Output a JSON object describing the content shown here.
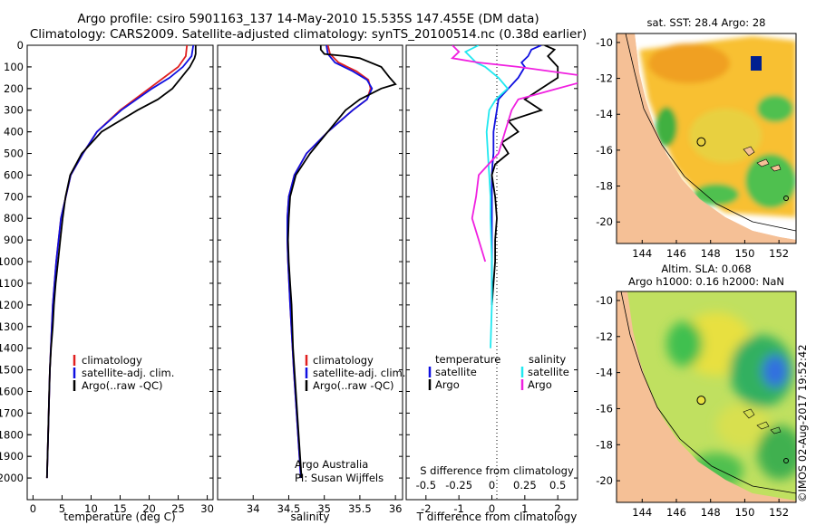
{
  "header": {
    "title_line1": "Argo profile: csiro 5901163_137 14-May-2010 15.535S 147.455E (DM data)",
    "title_line2": "Climatology: CARS2009. Satellite-adjusted climatology: synTS_20100514.nc (0.38d earlier)"
  },
  "credit": "©IMOS 02-Aug-2017 19:52:42",
  "colors": {
    "climatology": "#e02020",
    "satellite": "#1010e0",
    "argo": "#000000",
    "sat_salinity": "#20e8f0",
    "argo_salinity": "#f020e0"
  },
  "chart_data": [
    {
      "id": "temperature",
      "type": "line",
      "xlabel": "temperature (deg C)",
      "ylabel": "",
      "xlim": [
        -1,
        31
      ],
      "ylim": [
        2100,
        0
      ],
      "xticks": [
        "0",
        "5",
        "10",
        "15",
        "20",
        "25",
        "30"
      ],
      "yticks": [
        "0",
        "100",
        "200",
        "300",
        "400",
        "500",
        "600",
        "700",
        "800",
        "900",
        "1000",
        "1100",
        "1200",
        "1300",
        "1400",
        "1500",
        "1600",
        "1700",
        "1800",
        "1900",
        "2000"
      ],
      "legend": [
        "climatology",
        "satellite-adj. clim.",
        "Argo(..raw -QC)"
      ],
      "series": [
        {
          "name": "climatology",
          "color": "#e02020",
          "depth": [
            0,
            50,
            100,
            150,
            200,
            300,
            400,
            500,
            600,
            800,
            1000,
            1200,
            1500,
            1800,
            2000
          ],
          "values": [
            26.5,
            26.3,
            25,
            22.5,
            20,
            15,
            11,
            8.6,
            6.5,
            4.8,
            4,
            3.4,
            2.9,
            2.6,
            2.4
          ]
        },
        {
          "name": "satellite-adj. clim.",
          "color": "#1010e0",
          "depth": [
            0,
            50,
            100,
            150,
            200,
            300,
            400,
            500,
            600,
            800,
            1000,
            1200,
            1500,
            1800,
            2000
          ],
          "values": [
            27.6,
            27.3,
            25.8,
            23.5,
            20.5,
            15.2,
            11,
            8.6,
            6.5,
            4.8,
            4,
            3.4,
            2.9,
            2.6,
            2.4
          ]
        },
        {
          "name": "Argo(..raw -QC)",
          "color": "#000000",
          "depth": [
            0,
            40,
            60,
            100,
            150,
            200,
            250,
            300,
            400,
            500,
            600,
            700,
            800,
            900,
            1000,
            1100,
            1200,
            1300,
            1400,
            1500,
            1600,
            1800,
            2000
          ],
          "values": [
            28,
            28,
            27.8,
            27,
            25.5,
            24,
            21.5,
            18,
            11.8,
            8.4,
            6.4,
            5.6,
            5.1,
            4.7,
            4.3,
            3.9,
            3.6,
            3.4,
            3.1,
            2.9,
            2.8,
            2.6,
            2.4
          ]
        }
      ]
    },
    {
      "id": "salinity",
      "type": "line",
      "xlabel": "salinity",
      "xlim": [
        33.5,
        36.1
      ],
      "ylim": [
        2100,
        0
      ],
      "xticks": [
        "34",
        "34.5",
        "35",
        "35.5",
        "36"
      ],
      "legend": [
        "climatology",
        "satellite-adj. clim.",
        "Argo(..raw -QC)"
      ],
      "annotation": [
        "Argo Australia",
        "PI: Susan Wijffels"
      ],
      "series": [
        {
          "name": "climatology",
          "color": "#e02020",
          "depth": [
            0,
            40,
            80,
            120,
            160,
            200,
            250,
            300,
            400,
            500,
            600,
            700,
            800,
            900,
            1000,
            1200,
            1500,
            1800,
            2000
          ],
          "values": [
            35.05,
            35.08,
            35.2,
            35.45,
            35.62,
            35.65,
            35.6,
            35.4,
            35.05,
            34.75,
            34.58,
            34.5,
            34.48,
            34.48,
            34.49,
            34.52,
            34.57,
            34.63,
            34.67
          ]
        },
        {
          "name": "satellite-adj. clim.",
          "color": "#1010e0",
          "depth": [
            0,
            40,
            80,
            120,
            160,
            200,
            250,
            300,
            400,
            500,
            600,
            700,
            800,
            900,
            1000,
            1200,
            1500,
            1800,
            2000
          ],
          "values": [
            35.03,
            35.05,
            35.15,
            35.4,
            35.6,
            35.67,
            35.6,
            35.4,
            35.05,
            34.75,
            34.58,
            34.5,
            34.48,
            34.48,
            34.49,
            34.52,
            34.57,
            34.63,
            34.67
          ]
        },
        {
          "name": "Argo(..raw -QC)",
          "color": "#000000",
          "depth": [
            0,
            20,
            40,
            50,
            60,
            100,
            150,
            180,
            200,
            250,
            300,
            400,
            500,
            600,
            700,
            800,
            900,
            1000,
            1100,
            1200,
            1400,
            1600,
            1800,
            2000
          ],
          "values": [
            34.95,
            34.95,
            35.0,
            35.3,
            35.5,
            35.8,
            35.92,
            36.0,
            35.8,
            35.5,
            35.3,
            35.05,
            34.8,
            34.6,
            34.52,
            34.5,
            34.49,
            34.5,
            34.52,
            34.54,
            34.56,
            34.6,
            34.64,
            34.68
          ]
        }
      ]
    },
    {
      "id": "difference",
      "type": "line",
      "xlabel": "T difference from climatology",
      "xlabel_top": "S difference from climatology",
      "xlim": [
        -2.6,
        2.6
      ],
      "ylim": [
        2100,
        0
      ],
      "xticks": [
        "-2",
        "-1",
        "0",
        "1",
        "2"
      ],
      "xticks_s": [
        "-0.5",
        "-0.25",
        "0",
        "0.25",
        "0.5"
      ],
      "legend_titles": [
        "temperature",
        "salinity"
      ],
      "legend": [
        "satellite",
        "Argo",
        "satellite",
        "Argo"
      ],
      "series": [
        {
          "name": "temperature satellite",
          "color": "#1010e0",
          "depth": [
            0,
            20,
            50,
            80,
            100,
            150,
            200,
            250,
            300,
            350,
            400,
            450,
            500,
            550,
            600,
            700,
            800,
            900,
            1000,
            1100,
            1200
          ],
          "values": [
            1.5,
            1.2,
            1.1,
            0.9,
            1.0,
            0.8,
            0.5,
            0.2,
            0.15,
            0.1,
            0.05,
            0.05,
            0.05,
            0.02,
            0,
            0,
            0,
            0,
            0,
            0,
            0
          ]
        },
        {
          "name": "temperature Argo",
          "color": "#000000",
          "depth": [
            0,
            20,
            50,
            100,
            150,
            200,
            250,
            300,
            350,
            400,
            450,
            500,
            550,
            600,
            650,
            700,
            800,
            900,
            1000,
            1100,
            1200
          ],
          "values": [
            1.6,
            1.9,
            1.7,
            2.0,
            2.0,
            1.5,
            1.0,
            1.5,
            0.5,
            0.8,
            0.3,
            0.5,
            0.1,
            0.0,
            0.05,
            0.1,
            0.15,
            0.1,
            0.1,
            0.05,
            0
          ]
        },
        {
          "name": "salinity satellite",
          "color": "#20e8f0",
          "depth": [
            0,
            30,
            80,
            100,
            150,
            200,
            250,
            300,
            400,
            500,
            600,
            700,
            800,
            1000,
            1200,
            1400
          ],
          "values": [
            -0.1,
            -0.2,
            -0.12,
            -0.05,
            0.05,
            0.12,
            0.03,
            -0.02,
            -0.04,
            -0.03,
            -0.02,
            -0.01,
            -0.01,
            0,
            0,
            -0.01
          ]
        },
        {
          "name": "salinity Argo",
          "color": "#f020e0",
          "depth": [
            0,
            30,
            60,
            80,
            100,
            150,
            200,
            250,
            300,
            400,
            500,
            600,
            700,
            800,
            900,
            1000
          ],
          "values": [
            -0.3,
            -0.25,
            -0.3,
            -0.1,
            0.2,
            0.8,
            0.5,
            0.2,
            0.15,
            0.1,
            0.05,
            -0.1,
            -0.12,
            -0.15,
            -0.1,
            -0.05
          ]
        }
      ]
    },
    {
      "id": "sst_map",
      "type": "heatmap",
      "title": "sat. SST: 28.4 Argo: 28",
      "xticks": [
        "144",
        "146",
        "148",
        "150",
        "152"
      ],
      "yticks": [
        "-10",
        "-12",
        "-14",
        "-16",
        "-18",
        "-20"
      ],
      "xlim": [
        142.5,
        153
      ],
      "ylim": [
        -21.2,
        -9.5
      ],
      "argo_position": {
        "lon": 147.455,
        "lat": -15.535
      }
    },
    {
      "id": "sla_map",
      "type": "heatmap",
      "title": "Altim. SLA: 0.068",
      "subtitle": "Argo h1000: 0.16 h2000: NaN",
      "xticks": [
        "144",
        "146",
        "148",
        "150",
        "152"
      ],
      "yticks": [
        "-10",
        "-12",
        "-14",
        "-16",
        "-18",
        "-20"
      ],
      "xlim": [
        142.5,
        153
      ],
      "ylim": [
        -21.2,
        -9.5
      ],
      "argo_position": {
        "lon": 147.455,
        "lat": -15.535
      }
    }
  ]
}
